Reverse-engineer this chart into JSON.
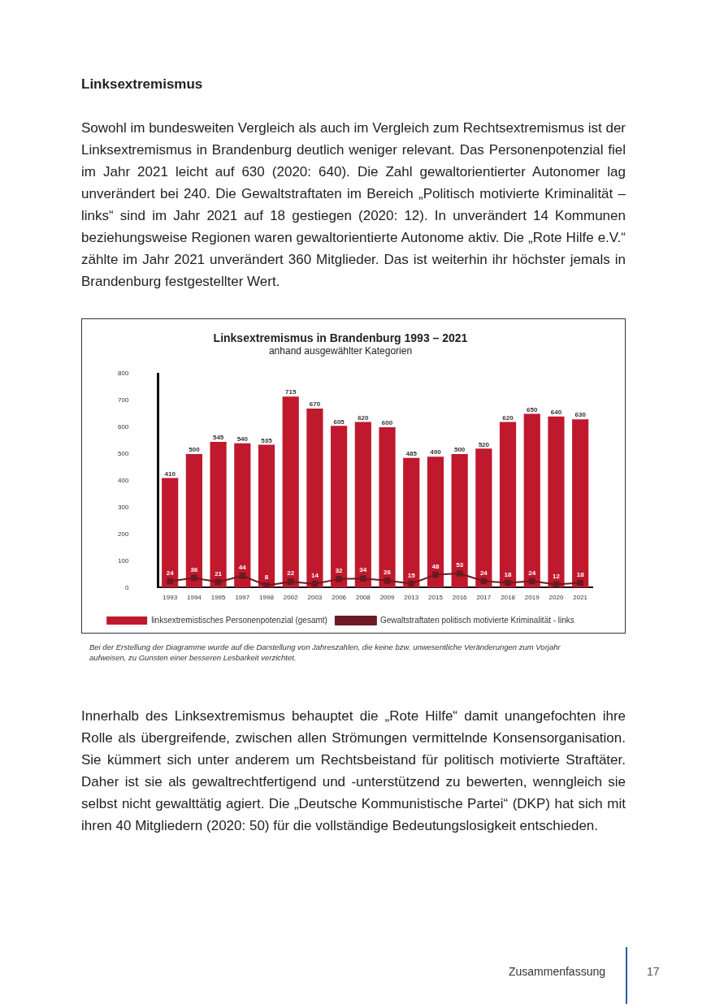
{
  "chart_data": {
    "type": "bar",
    "title": "Linksextremismus in Brandenburg 1993 – 2021",
    "subtitle": "anhand ausgewählter Kategorien",
    "categories": [
      "1993",
      "1994",
      "1995",
      "1997",
      "1998",
      "2002",
      "2003",
      "2006",
      "2008",
      "2009",
      "2013",
      "2015",
      "2016",
      "2017",
      "2018",
      "2019",
      "2020",
      "2021"
    ],
    "series": [
      {
        "name": "linksextremistisches Personenpotenzial (gesamt)",
        "color": "#c0192d",
        "values": [
          410,
          500,
          545,
          540,
          535,
          715,
          670,
          605,
          620,
          600,
          485,
          490,
          500,
          520,
          620,
          650,
          640,
          630
        ]
      },
      {
        "type": "line",
        "name": "Gewaltstraftaten politisch motivierte Kriminalität - links",
        "color": "#6b1a22",
        "values": [
          24,
          36,
          21,
          44,
          8,
          22,
          14,
          32,
          34,
          26,
          15,
          48,
          53,
          24,
          18,
          24,
          12,
          18
        ]
      }
    ],
    "ylim": [
      0,
      800
    ],
    "yticks": [
      0,
      100,
      200,
      300,
      400,
      500,
      600,
      700,
      800
    ],
    "grid": false,
    "legend": "bottom",
    "marker": "square",
    "data_labels": true,
    "annotations": [
      "Linksextremismus",
      "Sowohl im bundesweiten Vergleich als auch im Vergleich zum Rechtsextremismus ist der Linksextremismus in Brandenburg deutlich weniger relevant. Das Personenpotenzial fiel im Jahr 2021 leicht auf 630 (2020: 640). Die Zahl gewaltorientierter Autonomer lag unverändert bei 240. Die Gewaltstraftaten im Bereich „Politisch motivierte Kriminalität – links“ sind im Jahr 2021 auf 18 gestiegen (2020: 12). In unverändert 14 Kommunen beziehungsweise Regionen waren gewaltorientierte Autonome aktiv. Die „Rote Hilfe e.V.“ zählte im Jahr 2021 unverändert 360 Mitglieder. Das ist weiterhin ihr höchster jemals in Brandenburg festgestellter Wert.",
      "Bei der Erstellung der Diagramme wurde auf die Darstellung von Jahreszahlen, die keine bzw. unwesentliche Veränderungen zum Vorjahr aufweisen, zu Gunsten einer besseren Lesbarkeit verzichtet.",
      "Innerhalb des Linksextremismus behauptet die „Rote Hilfe“ damit unangefochten ihre Rolle als übergreifende, zwischen allen Strömungen vermittelnde Konsensorganisation. Sie kümmert sich unter anderem um Rechtsbeistand für politisch motivierte Straftäter. Daher ist sie als gewaltrechtfertigend und -unterstützend zu bewerten, wenngleich sie selbst nicht gewalttätig agiert. Die „Deutsche Kommunistische Partei“ (DKP) hat sich mit ihren 40 Mitgliedern (2020: 50) für die vollständige Bedeutungslosigkeit entschieden.",
      "Zusammenfassung",
      "17"
    ]
  }
}
